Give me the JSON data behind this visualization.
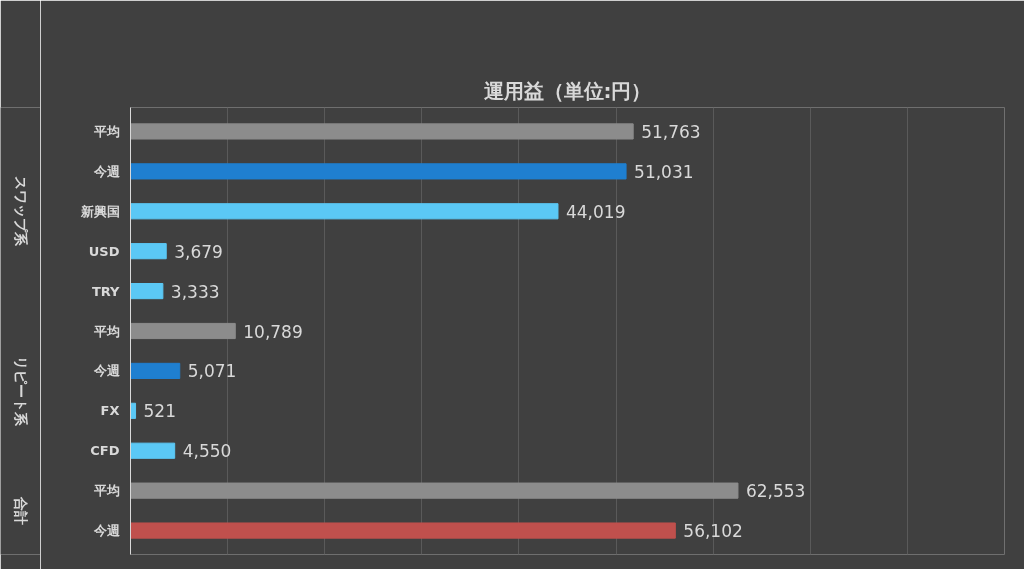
{
  "chart_data": {
    "type": "bar",
    "orientation": "horizontal",
    "title": "運用益（単位:円）",
    "categories": [
      "平均",
      "今週",
      "新興国",
      "USD",
      "TRY",
      "平均",
      "今週",
      "FX",
      "CFD",
      "平均",
      "今週"
    ],
    "values": [
      51763,
      51031,
      44019,
      3679,
      3333,
      10789,
      5071,
      521,
      4550,
      62553,
      56102
    ],
    "colors": [
      "#8c8c8c",
      "#1f7fd0",
      "#5bc8f5",
      "#5bc8f5",
      "#5bc8f5",
      "#8c8c8c",
      "#1f7fd0",
      "#5bc8f5",
      "#5bc8f5",
      "#8c8c8c",
      "#c0504d"
    ],
    "value_labels": [
      "51,763",
      "51,031",
      "44,019",
      "3,679",
      "3,333",
      "10,789",
      "5,071",
      "521",
      "4,550",
      "62,553",
      "56,102"
    ],
    "annotations": [
      "スワップ系",
      "リピート系",
      "合計"
    ],
    "xlim": [
      0,
      90000
    ],
    "xticks": [
      {
        "value": 0,
        "label": null
      },
      {
        "value": 10000,
        "label": null
      },
      {
        "value": 20000,
        "label": null
      },
      {
        "value": 30000,
        "label": null
      },
      {
        "value": 40000,
        "label": null
      },
      {
        "value": 50000,
        "label": null
      },
      {
        "value": 60000,
        "label": null
      },
      {
        "value": 70000,
        "label": null
      },
      {
        "value": 80000,
        "label": null
      },
      {
        "value": 90000,
        "label": null
      }
    ],
    "grid": "x",
    "tick_labels": "y"
  }
}
